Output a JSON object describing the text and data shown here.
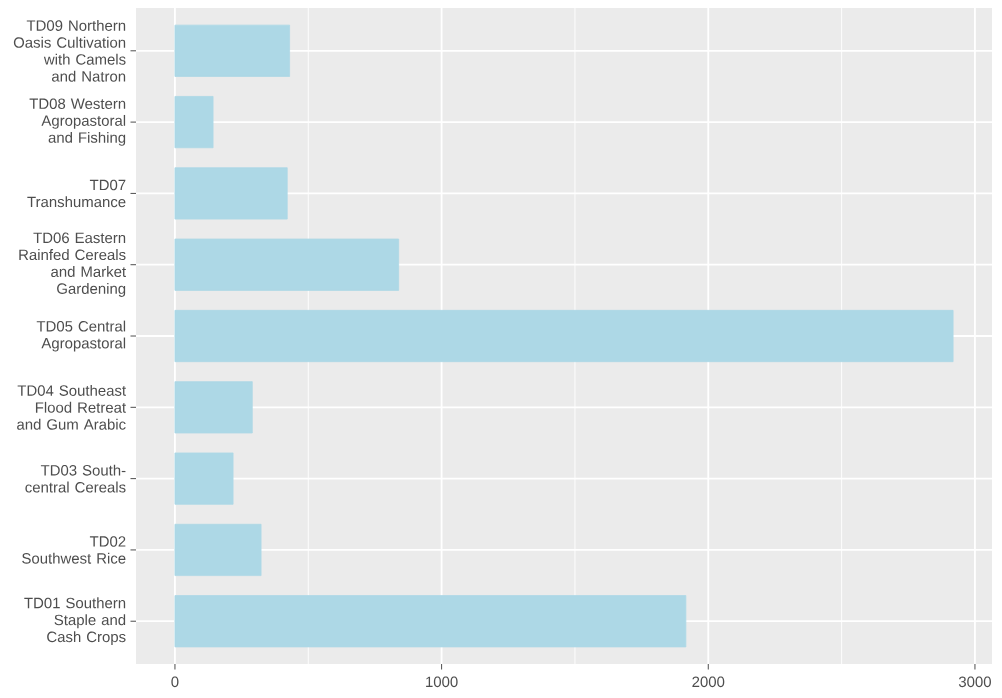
{
  "chart_data": {
    "type": "bar",
    "orientation": "horizontal",
    "categories": [
      "TD09 Northern Oasis Cultivation with Camels and Natron",
      "TD08 Western Agropastoral and Fishing",
      "TD07 Transhumance",
      "TD06 Eastern Rainfed Cereals and Market Gardening",
      "TD05 Central Agropastoral",
      "TD04 Southeast Flood Retreat and Gum Arabic",
      "TD03 South-central Cereals",
      "TD02 Southwest Rice",
      "TD01 Southern Staple and Cash Crops"
    ],
    "values": [
      430,
      143,
      421,
      839,
      2918,
      290,
      218,
      323,
      1916
    ],
    "color": "#add8e6",
    "xlim": [
      -146,
      3064
    ],
    "xticks": [
      0,
      1000,
      2000,
      3000
    ],
    "grid": true
  }
}
